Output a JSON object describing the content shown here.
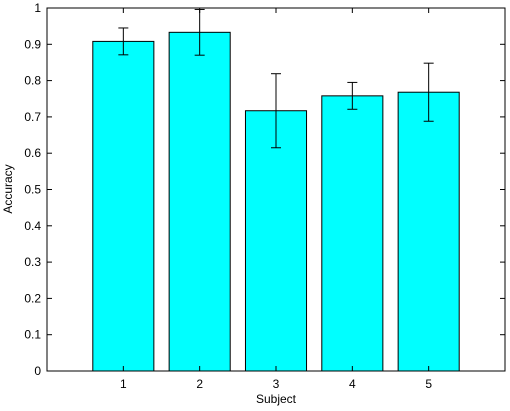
{
  "chart_data": {
    "type": "bar",
    "title": "",
    "xlabel": "Subject",
    "ylabel": "Accuracy",
    "categories": [
      "1",
      "2",
      "3",
      "4",
      "5"
    ],
    "values": [
      0.908,
      0.933,
      0.717,
      0.758,
      0.768
    ],
    "error": [
      0.037,
      0.063,
      0.102,
      0.037,
      0.08
    ],
    "ylim": [
      0,
      1
    ],
    "yticks": [
      "0",
      "0.1",
      "0.2",
      "0.3",
      "0.4",
      "0.5",
      "0.6",
      "0.7",
      "0.8",
      "0.9",
      "1"
    ],
    "grid": false,
    "bar_color": "#00ffff",
    "edge_color": "#000000"
  }
}
